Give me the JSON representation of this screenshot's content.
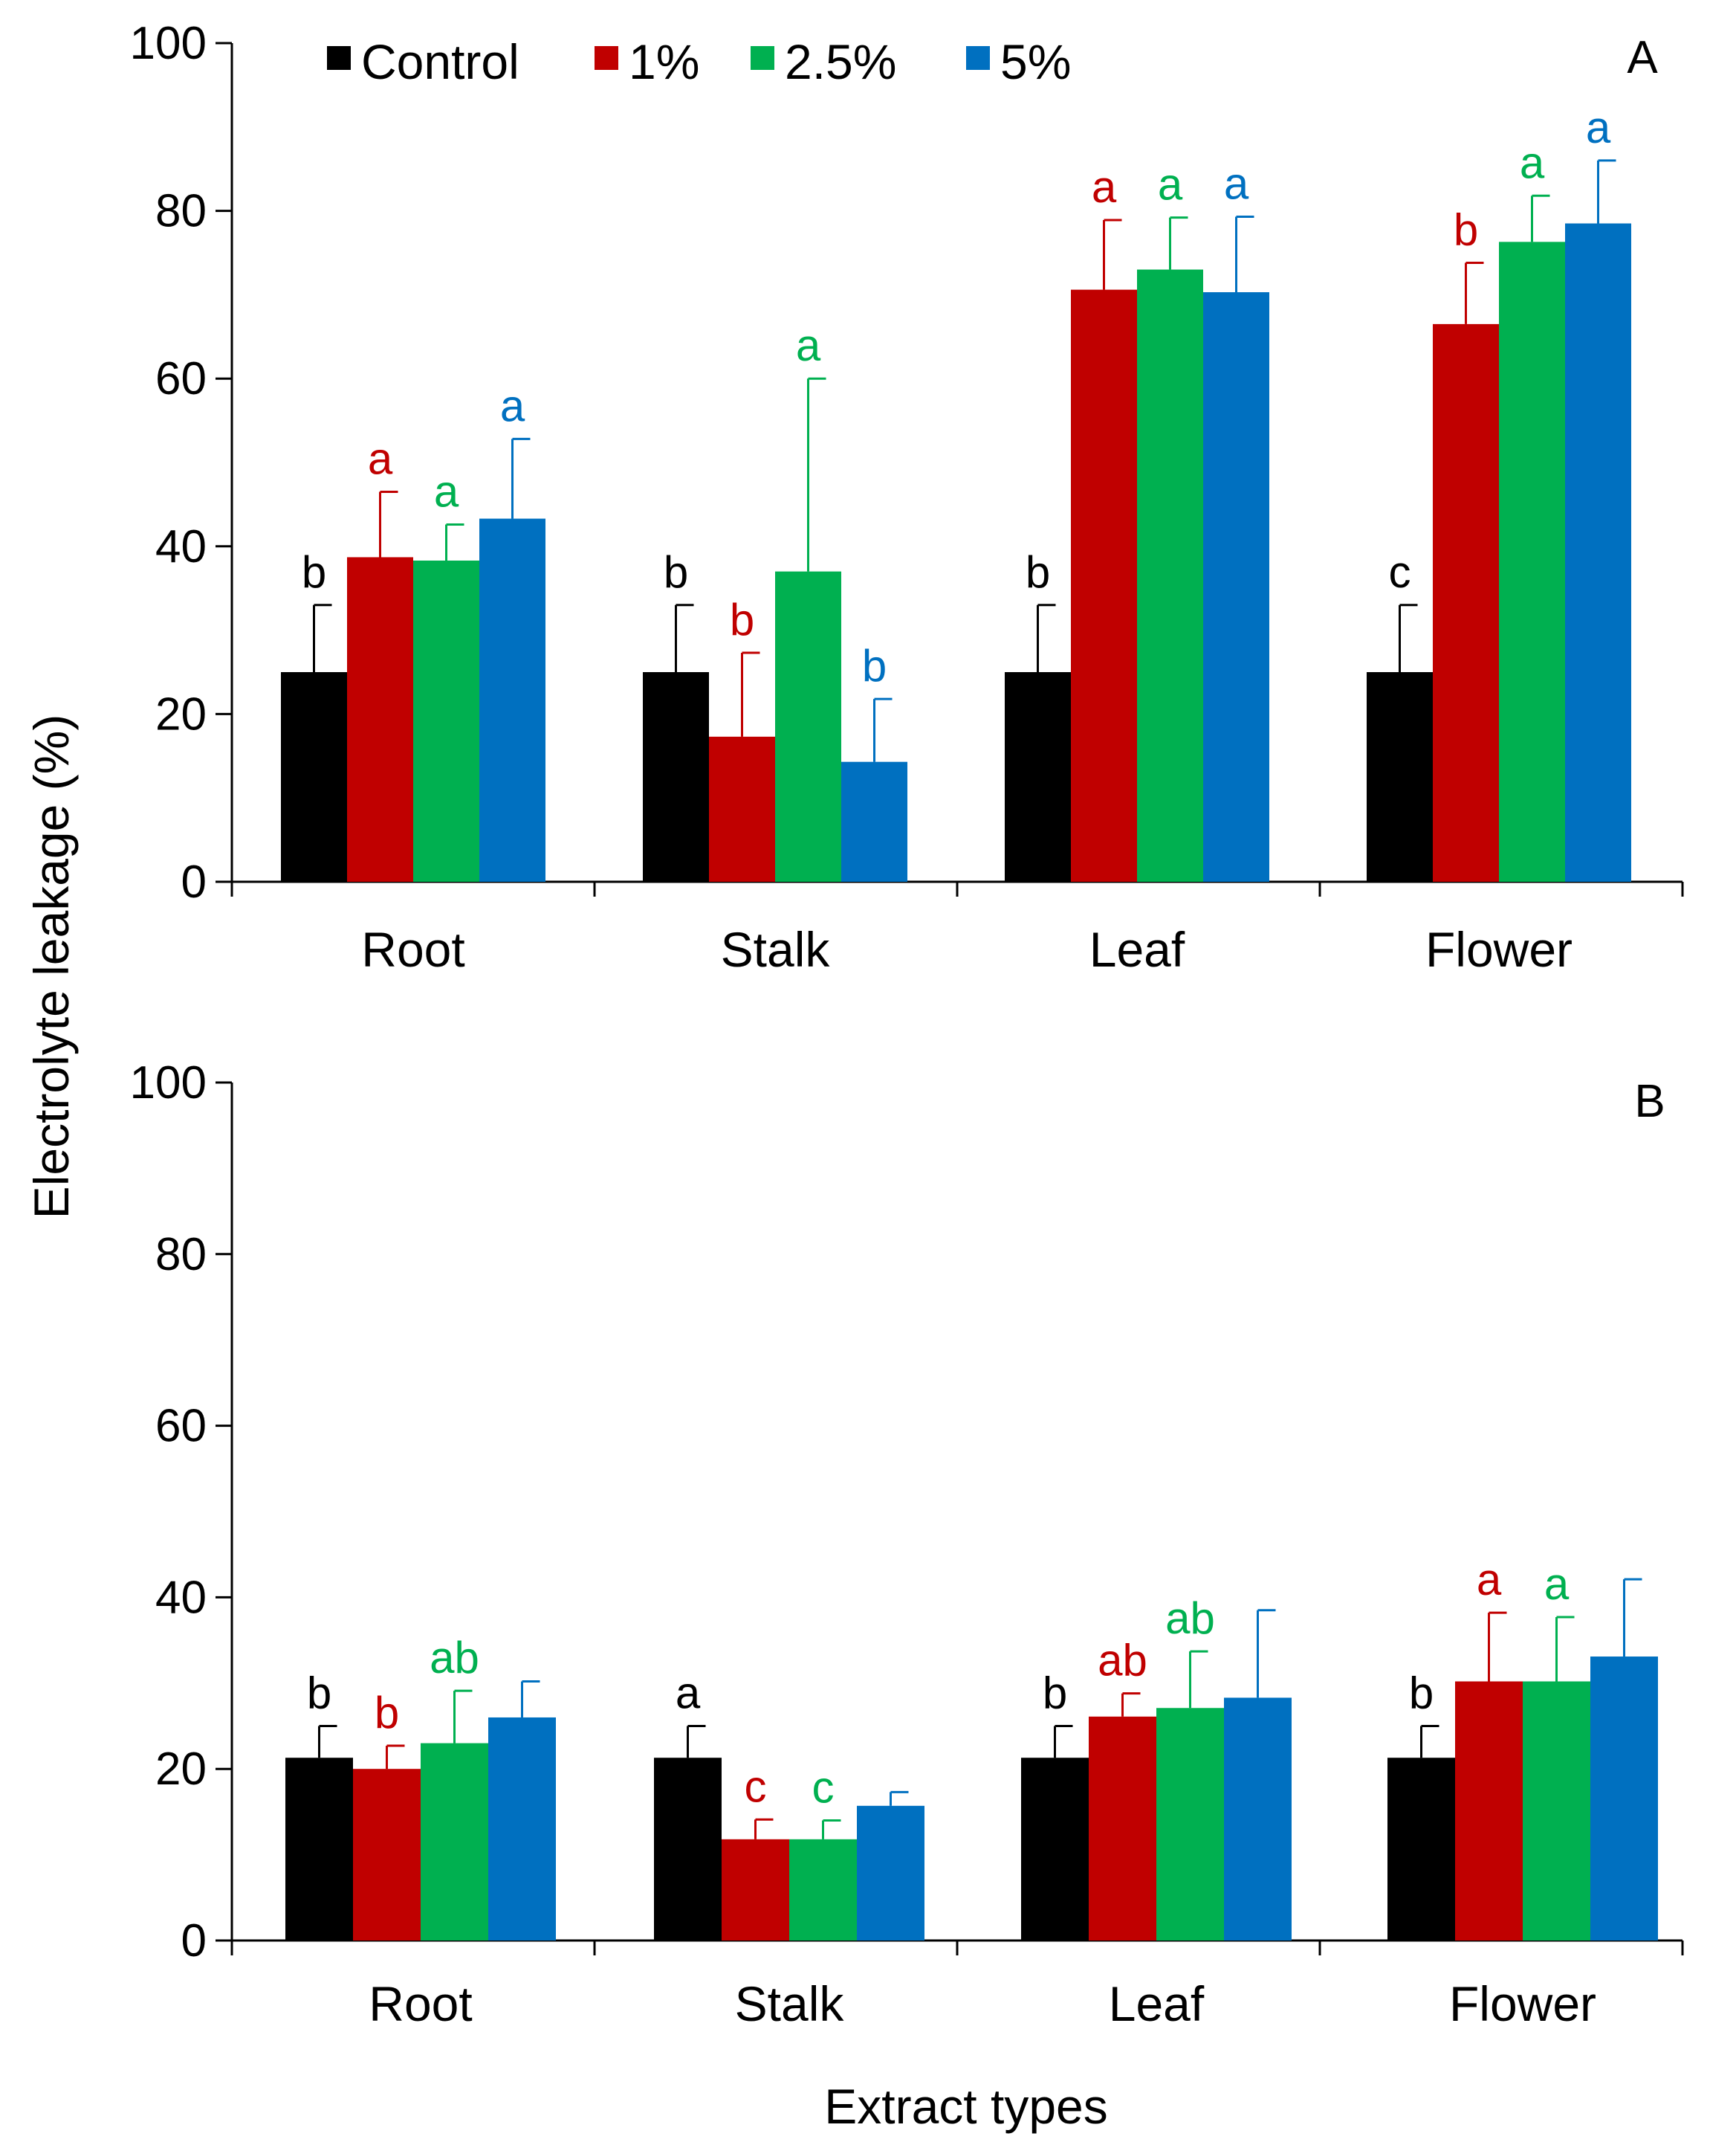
{
  "chart_data": {
    "type": "bar",
    "ylabel": "Electrolyte leakage (%)",
    "xlabel": "Extract types",
    "ylim": [
      0,
      100
    ],
    "yticks": [
      0,
      20,
      40,
      60,
      80,
      100
    ],
    "categories": [
      "Root",
      "Stalk",
      "Leaf",
      "Flower"
    ],
    "legend": {
      "position": "top-left",
      "entries": [
        "Control",
        "1%",
        "2.5%",
        "5%"
      ]
    },
    "colors": [
      "#000000",
      "#C00000",
      "#00B050",
      "#0070C0"
    ],
    "panels": [
      {
        "label": "A",
        "series": [
          {
            "name": "Control",
            "values": [
              25,
              25,
              25,
              25
            ],
            "errors": [
              8,
              8,
              8,
              8
            ],
            "letters": [
              "b",
              "b",
              "b",
              "c"
            ]
          },
          {
            "name": "1%",
            "values": [
              38.7,
              17.3,
              70.6,
              66.5
            ],
            "errors": [
              7.8,
              10,
              8.3,
              7.3
            ],
            "letters": [
              "a",
              "b",
              "a",
              "b"
            ]
          },
          {
            "name": "2.5%",
            "values": [
              38.3,
              37,
              73,
              76.3
            ],
            "errors": [
              4.3,
              23,
              6.2,
              5.5
            ],
            "letters": [
              "a",
              "a",
              "a",
              "a"
            ]
          },
          {
            "name": "5%",
            "values": [
              43.3,
              14.3,
              70.3,
              78.5
            ],
            "errors": [
              9.5,
              7.5,
              9,
              7.5
            ],
            "letters": [
              "a",
              "b",
              "a",
              "a"
            ]
          }
        ]
      },
      {
        "label": "B",
        "series": [
          {
            "name": "Control",
            "values": [
              21.3,
              21.3,
              21.3,
              21.3
            ],
            "errors": [
              3.7,
              3.7,
              3.7,
              3.7
            ],
            "letters": [
              "b",
              "a",
              "b",
              "b"
            ]
          },
          {
            "name": "1%",
            "values": [
              20,
              11.8,
              26.1,
              30.2
            ],
            "errors": [
              2.7,
              2.3,
              2.7,
              8
            ],
            "letters": [
              "b",
              "c",
              "ab",
              "a"
            ]
          },
          {
            "name": "2.5%",
            "values": [
              23,
              11.8,
              27.1,
              30.2
            ],
            "errors": [
              6.1,
              2.2,
              6.6,
              7.5
            ],
            "letters": [
              "ab",
              "c",
              "ab",
              "a"
            ]
          },
          {
            "name": "5%",
            "values": [
              26,
              15.7,
              28.3,
              33.1
            ],
            "errors": [
              4.2,
              1.6,
              10.2,
              9
            ]
          }
        ]
      }
    ]
  }
}
